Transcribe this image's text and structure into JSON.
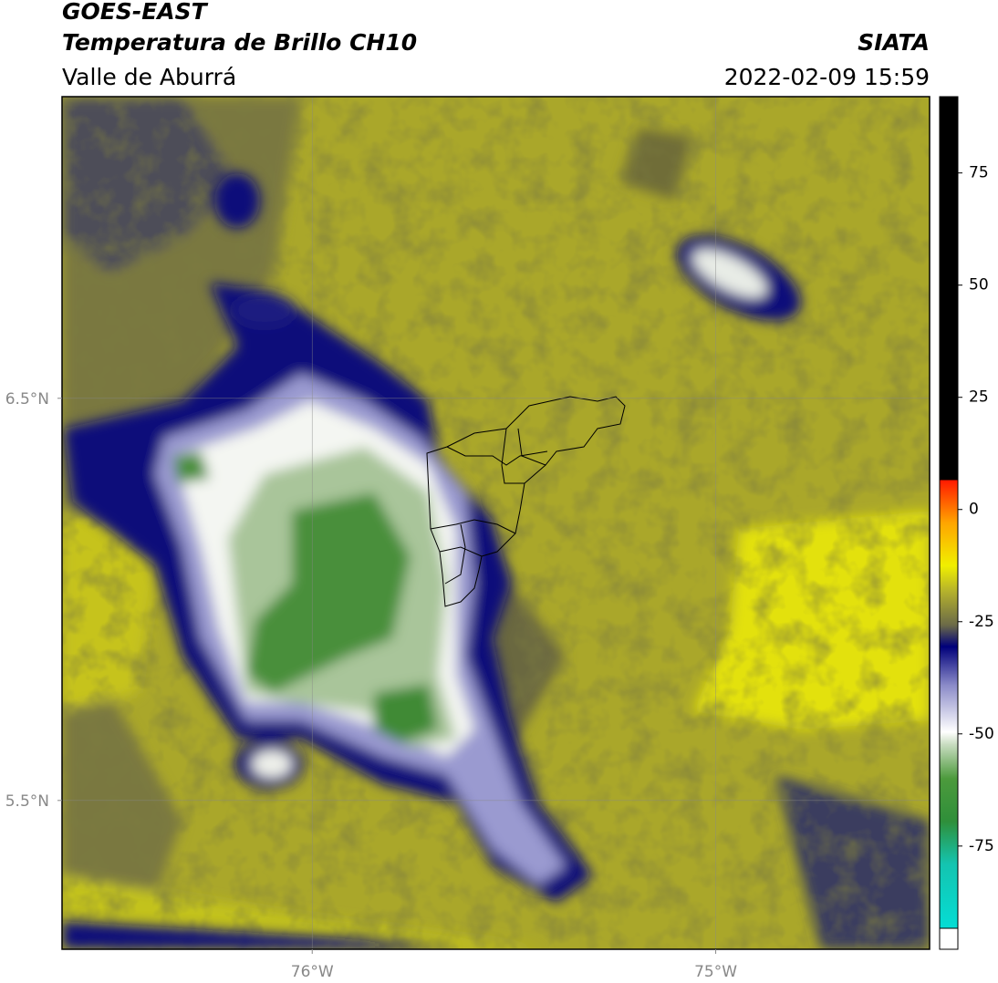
{
  "header": {
    "title": "GOES-EAST",
    "subtitle": "Temperatura de Brillo CH10",
    "region": "Valle de Aburrá",
    "agency": "SIATA",
    "datetime": "2022-02-09 15:59"
  },
  "map": {
    "xlim": [
      -76.62,
      -74.47
    ],
    "ylim": [
      5.13,
      7.25
    ],
    "xticks": [
      {
        "value": -76,
        "label": "76°W"
      },
      {
        "value": -75,
        "label": "75°W"
      }
    ],
    "yticks": [
      {
        "value": 6.5,
        "label": "6.5°N"
      },
      {
        "value": 5.5,
        "label": "5.5°N"
      }
    ],
    "grid": true
  },
  "colorbar": {
    "lim": [
      -98,
      92
    ],
    "ticks": [
      75,
      50,
      25,
      0,
      -25,
      -50,
      -75
    ]
  }
}
